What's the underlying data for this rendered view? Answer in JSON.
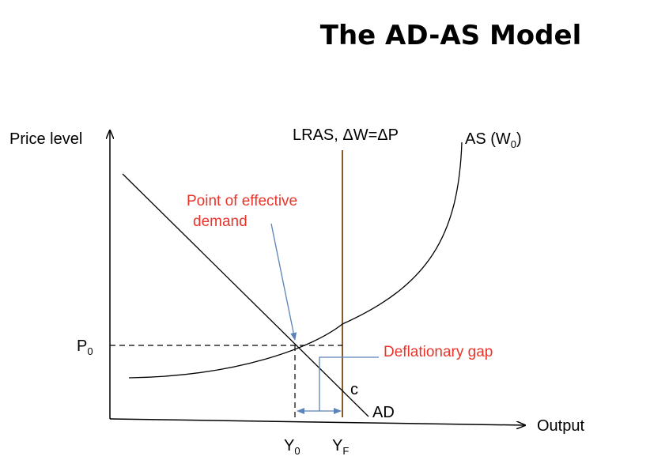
{
  "title": "The AD-AS Model",
  "axes": {
    "y_label": "Price level",
    "x_label": "Output"
  },
  "curves": {
    "lras_label": "LRAS, ΔW=ΔP",
    "as_label_main": "AS (W",
    "as_label_sub": "0",
    "as_label_close": ")",
    "ad_label": "AD"
  },
  "points": {
    "p0_main": "P",
    "p0_sub": "0",
    "y0_main": "Y",
    "y0_sub": "0",
    "yf_main": "Y",
    "yf_sub": "F",
    "c_label": "c"
  },
  "annotations": {
    "effective_demand_line1": "Point of effective",
    "effective_demand_line2": "demand",
    "deflationary_gap": "Deflationary gap"
  },
  "colors": {
    "lras": "#8b5a2b",
    "annotation_text": "#e8352b",
    "annotation_arrow": "#5b82b8",
    "axes": "#000000"
  }
}
